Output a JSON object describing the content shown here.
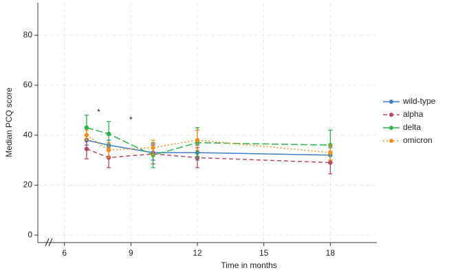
{
  "chart_data": {
    "type": "line",
    "x_label": "Time in months",
    "y_label": "Median PCQ score",
    "x": [
      7,
      8,
      10,
      12,
      18
    ],
    "series": [
      {
        "name": "wild-type",
        "color": "#3a7dc9",
        "dash": "solid",
        "values": [
          38,
          36,
          33,
          33,
          32
        ],
        "errors": [
          2,
          2,
          3,
          3,
          3
        ]
      },
      {
        "name": "alpha",
        "color": "#b5475e",
        "dash": "dashed",
        "values": [
          34.5,
          31,
          32.5,
          31,
          29
        ],
        "errors": [
          4,
          4,
          4,
          4,
          4.5
        ]
      },
      {
        "name": "delta",
        "color": "#2bb34a",
        "dash": "longdash",
        "values": [
          43,
          40.5,
          32,
          37,
          36
        ],
        "errors": [
          5,
          5,
          5,
          6,
          6
        ]
      },
      {
        "name": "omicron",
        "color": "#f28e1c",
        "dash": "dotted",
        "values": [
          40,
          34,
          35,
          38,
          33
        ],
        "errors": [
          2,
          3,
          3,
          4,
          3
        ]
      }
    ],
    "annotations": [
      {
        "text": "*",
        "x": 7.55,
        "y": 49
      },
      {
        "text": "*",
        "x": 9,
        "y": 46
      }
    ],
    "xlim": [
      4.8,
      20.1
    ],
    "ylim": [
      -3,
      93
    ],
    "xticks": [
      6,
      9,
      12,
      15,
      18
    ],
    "yticks": [
      0,
      20,
      40,
      60,
      80
    ],
    "grid": true,
    "legend": "right"
  }
}
